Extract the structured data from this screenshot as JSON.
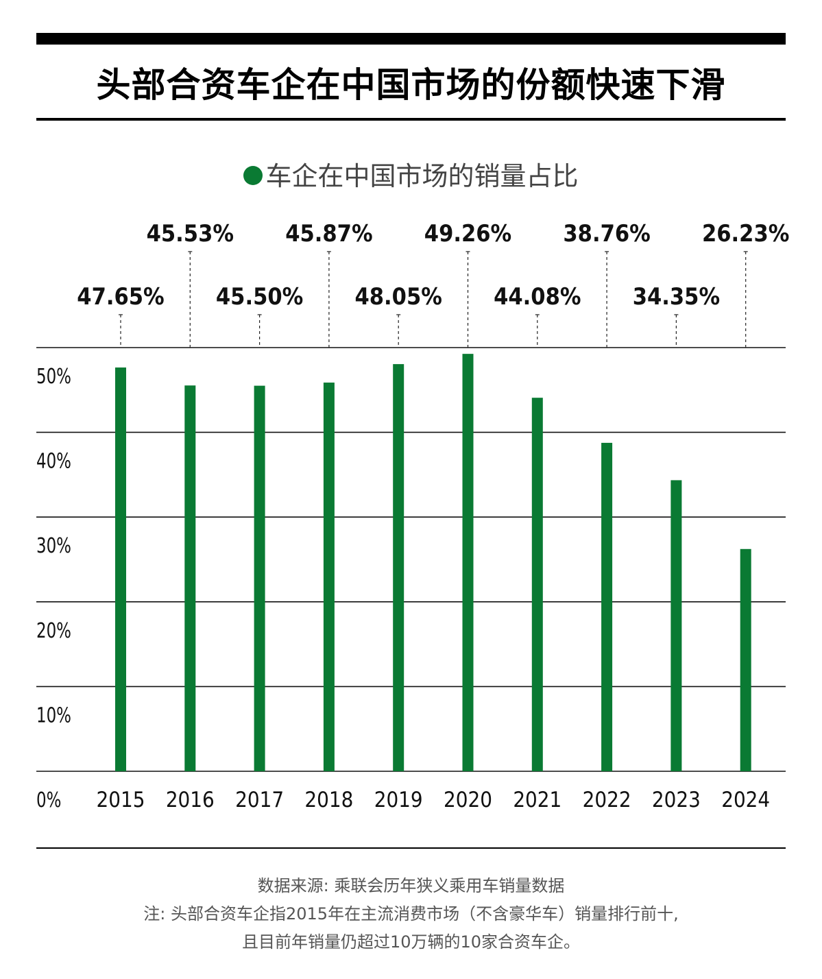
{
  "title": "头部合资车企在中国市场的份额快速下滑",
  "legend_label": "车企在中国市场的销量占比",
  "colors": {
    "bar": "#0a7a33",
    "grid": "#111111",
    "label": "#111111"
  },
  "chart_data": {
    "type": "bar",
    "title": "头部合资车企在中国市场的份额快速下滑",
    "series": [
      {
        "name": "车企在中国市场的销量占比",
        "values": [
          47.65,
          45.53,
          45.5,
          45.87,
          48.05,
          49.26,
          44.08,
          38.76,
          34.35,
          26.23
        ]
      }
    ],
    "categories": [
      "2015",
      "2016",
      "2017",
      "2018",
      "2019",
      "2020",
      "2021",
      "2022",
      "2023",
      "2024"
    ],
    "data_labels": [
      "47.65%",
      "45.53%",
      "45.50%",
      "45.87%",
      "48.05%",
      "49.26%",
      "44.08%",
      "38.76%",
      "34.35%",
      "26.23%"
    ],
    "y_ticks": [
      0,
      10,
      20,
      30,
      40,
      50
    ],
    "y_tick_labels": [
      "0%",
      "10%",
      "20%",
      "30%",
      "40%",
      "50%"
    ],
    "ylim": [
      0,
      50
    ],
    "grid": true,
    "legend": "top-center"
  },
  "notes": {
    "source": "数据来源: 乘联会历年狭义乘用车销量数据",
    "note_line1": "注: 头部合资车企指2015年在主流消费市场（不含豪华车）销量排行前十,",
    "note_line2": "且目前年销量仍超过10万辆的10家合资车企。"
  }
}
